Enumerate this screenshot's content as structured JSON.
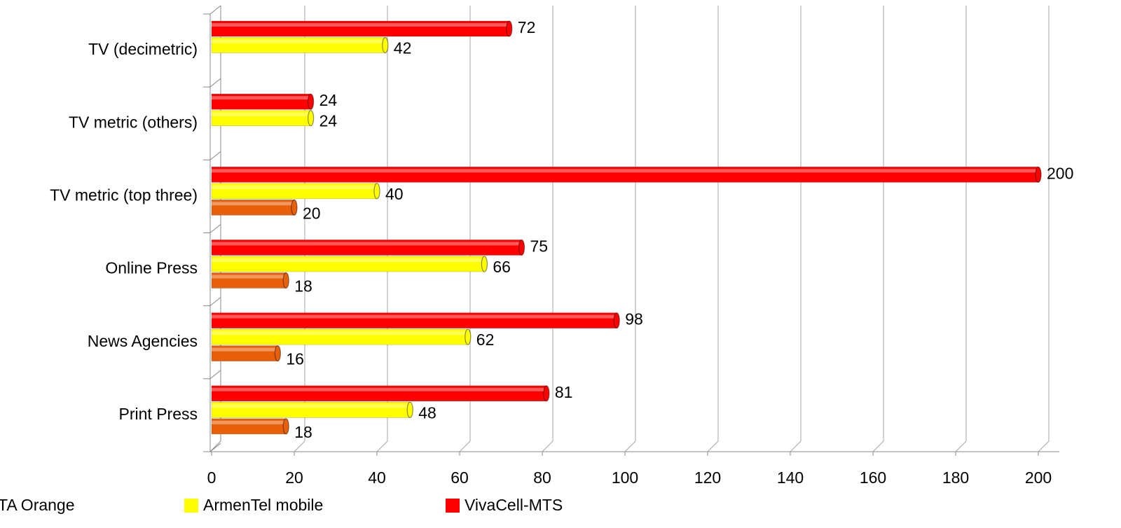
{
  "chart_data": {
    "type": "bar",
    "orientation": "horizontal",
    "categories": [
      "Print Press",
      "News Agencies",
      "Online Press",
      "TV metric (top three)",
      "TV metric (others)",
      "TV (decimetric)"
    ],
    "series": [
      {
        "name": "TA Orange",
        "color": "#e8600a",
        "values": [
          18,
          16,
          18,
          20,
          null,
          null
        ]
      },
      {
        "name": "ArmenTel mobile",
        "color": "#ffff00",
        "values": [
          48,
          62,
          66,
          40,
          24,
          42
        ]
      },
      {
        "name": "VivaCell-MTS",
        "color": "#ff0000",
        "values": [
          81,
          98,
          75,
          200,
          24,
          72
        ]
      }
    ],
    "xlim": [
      0,
      200
    ],
    "xticks": [
      0,
      20,
      40,
      60,
      80,
      100,
      120,
      140,
      160,
      180,
      200
    ],
    "grid": true,
    "legend": "bottom"
  }
}
